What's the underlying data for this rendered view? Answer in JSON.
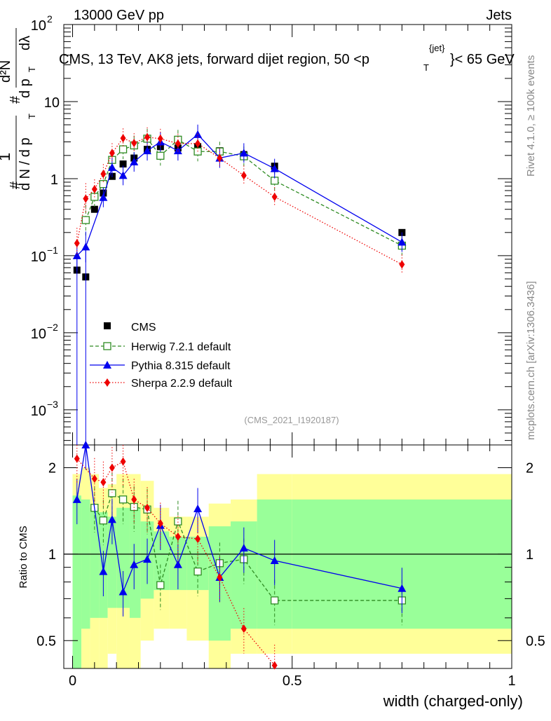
{
  "header": {
    "left": "13000 GeV pp",
    "right": "Jets",
    "title": "CMS, 13 TeV, AK8 jets, forward dijet region, 50 <p",
    "title_sup": "{jet}",
    "title_sub": "T",
    "title_end": "}< 65 GeV",
    "analysis": "(CMS_2021_I1920187)",
    "side_top": "Rivet 4.1.0, ≥ 100k events",
    "side_bottom": "mcplots.cern.ch [arXiv:1306.3436]"
  },
  "colors": {
    "cms": "#000000",
    "herwig": "#2e8b22",
    "pythia": "#0000ee",
    "sherpa": "#ee0000",
    "band_outer": "#ffff99",
    "band_inner": "#99ff99"
  },
  "chart_data": [
    {
      "type": "scatter",
      "title": "CMS, 13 TeV, AK8 jets, forward dijet region, 50 < pT(jet) < 65 GeV",
      "xlabel": "",
      "ylabel": "1/dN/dpT dN^2/dpT dlambda",
      "ylabel_parts": [
        "#",
        "1",
        "d N / d p",
        "T",
        "#",
        "d p",
        "T",
        "dλ",
        "d²N"
      ],
      "yscale": "log",
      "xlim": [
        -0.02,
        1.0
      ],
      "ylim": [
        0.00035,
        100
      ],
      "y_tick_labels": [
        {
          "value": 100,
          "base": "10",
          "exp": "2"
        },
        {
          "value": 10,
          "base": "10",
          "exp": ""
        },
        {
          "value": 1,
          "base": "1",
          "exp": ""
        },
        {
          "value": 0.1,
          "base": "10",
          "exp": "−1"
        },
        {
          "value": 0.01,
          "base": "10",
          "exp": "−2"
        },
        {
          "value": 0.001,
          "base": "10",
          "exp": "−3"
        }
      ],
      "legend": [
        "CMS",
        "Herwig 7.2.1 default",
        "Pythia 8.315 default",
        "Sherpa 2.2.9 default"
      ],
      "series": [
        {
          "name": "CMS",
          "marker": "filled-square",
          "x": [
            0.01,
            0.03,
            0.05,
            0.07,
            0.09,
            0.115,
            0.14,
            0.17,
            0.2,
            0.24,
            0.285,
            0.335,
            0.39,
            0.46,
            0.75
          ],
          "y": [
            0.065,
            0.053,
            0.4,
            0.65,
            1.07,
            1.55,
            1.85,
            2.4,
            2.6,
            2.5,
            2.6,
            2.3,
            2.05,
            1.45,
            0.2
          ]
        },
        {
          "name": "Herwig 7.2.1 default",
          "marker": "open-square",
          "x": [
            0.03,
            0.05,
            0.07,
            0.09,
            0.115,
            0.14,
            0.17,
            0.2,
            0.24,
            0.285,
            0.335,
            0.39,
            0.46,
            0.75
          ],
          "y": [
            0.29,
            0.58,
            0.85,
            1.75,
            2.4,
            2.7,
            3.3,
            1.98,
            3.2,
            2.25,
            2.25,
            1.95,
            0.94,
            0.135
          ]
        },
        {
          "name": "Pythia 8.315 default",
          "marker": "filled-triangle",
          "x": [
            0.01,
            0.03,
            0.07,
            0.09,
            0.115,
            0.14,
            0.17,
            0.2,
            0.24,
            0.285,
            0.335,
            0.39,
            0.46,
            0.75
          ],
          "y": [
            0.1,
            0.13,
            0.57,
            1.4,
            1.1,
            1.65,
            2.3,
            3.0,
            2.3,
            3.75,
            1.85,
            2.15,
            1.35,
            0.15
          ]
        },
        {
          "name": "Sherpa 2.2.9 default",
          "marker": "filled-diamond",
          "x": [
            0.01,
            0.03,
            0.05,
            0.07,
            0.09,
            0.115,
            0.14,
            0.17,
            0.2,
            0.24,
            0.285,
            0.335,
            0.39,
            0.46,
            0.75
          ],
          "y": [
            0.145,
            0.55,
            0.73,
            1.15,
            2.15,
            3.35,
            2.9,
            3.45,
            3.3,
            2.85,
            2.85,
            1.85,
            1.1,
            0.58,
            0.077
          ]
        }
      ]
    },
    {
      "type": "scatter",
      "title": "",
      "xlabel": "width (charged-only)",
      "ylabel": "Ratio to CMS",
      "yscale": "log",
      "xlim": [
        -0.02,
        1.0
      ],
      "ylim": [
        0.4,
        2.4
      ],
      "x_tick_labels": [
        "0",
        "0.5",
        "1"
      ],
      "y_tick_labels": [
        "2",
        "1",
        "0.5"
      ],
      "series": [
        {
          "name": "Herwig 7.2.1 default",
          "x": [
            0.05,
            0.07,
            0.09,
            0.115,
            0.14,
            0.17,
            0.2,
            0.24,
            0.285,
            0.335,
            0.39,
            0.46,
            0.75
          ],
          "y": [
            1.45,
            1.31,
            1.63,
            1.55,
            1.46,
            1.43,
            0.78,
            1.3,
            0.87,
            0.93,
            0.96,
            0.69,
            0.69
          ]
        },
        {
          "name": "Pythia 8.315 default",
          "x": [
            0.01,
            0.03,
            0.07,
            0.09,
            0.115,
            0.14,
            0.17,
            0.2,
            0.24,
            0.285,
            0.335,
            0.39,
            0.46,
            0.75
          ],
          "y": [
            1.55,
            2.4,
            0.87,
            1.32,
            0.74,
            0.92,
            0.96,
            1.26,
            0.92,
            1.44,
            0.83,
            1.05,
            0.95,
            0.76
          ]
        },
        {
          "name": "Sherpa 2.2.9 default",
          "x": [
            0.01,
            0.05,
            0.07,
            0.09,
            0.115,
            0.14,
            0.17,
            0.2,
            0.24,
            0.285,
            0.335,
            0.39,
            0.46
          ],
          "y": [
            2.15,
            1.83,
            1.78,
            2.0,
            2.1,
            1.55,
            1.45,
            1.28,
            1.15,
            1.13,
            0.83,
            0.55,
            0.41
          ]
        }
      ]
    }
  ]
}
